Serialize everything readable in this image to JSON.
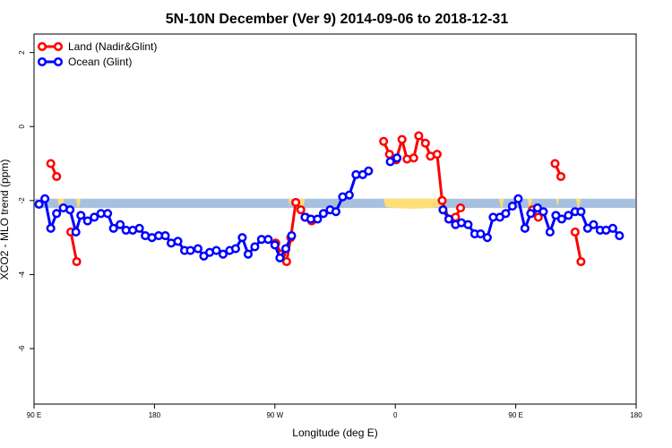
{
  "chart_data": {
    "type": "line",
    "title": "5N-10N December (Ver 9)   2014-09-06 to 2018-12-31",
    "xlabel": "Longitude (deg E)",
    "ylabel": "XCO2 - MLO trend (ppm)",
    "xlim": [
      90,
      450
    ],
    "ylim": [
      -7.5,
      2.5
    ],
    "x_ticks": [
      {
        "value": 90,
        "label": "90 E"
      },
      {
        "value": 162,
        "label": "180"
      },
      {
        "value": 234,
        "label": "90 W"
      },
      {
        "value": 306,
        "label": "0"
      },
      {
        "value": 378,
        "label": "90 E"
      },
      {
        "value": 450,
        "label": "180"
      }
    ],
    "y_ticks": [
      {
        "value": 2,
        "label": "2"
      },
      {
        "value": 0,
        "label": "0"
      },
      {
        "value": -2,
        "label": "-2"
      },
      {
        "value": -4,
        "label": "-4"
      },
      {
        "value": -6,
        "label": "-6"
      }
    ],
    "colors": {
      "land": "#ff0000",
      "ocean": "#0000ff",
      "band": "#a8c0e0",
      "landmask": "#ffdd77"
    },
    "band": {
      "y_top": -1.95,
      "y_bottom": -2.2
    },
    "legend": {
      "position": "top-left"
    },
    "series": [
      {
        "name": "Land (Nadir&Glint)",
        "color": "#ff0000",
        "segments": [
          [
            [
              100,
              -1.0
            ],
            [
              103.5,
              -1.35
            ]
          ],
          [
            [
              112,
              -2.85
            ],
            [
              115.5,
              -3.65
            ]
          ],
          [
            [
              234.5,
              -3.15
            ],
            [
              238,
              -3.45
            ],
            [
              241,
              -3.65
            ],
            [
              243.5,
              -3.0
            ],
            [
              246.5,
              -2.05
            ],
            [
              249.5,
              -2.25
            ],
            [
              252.5,
              -2.45
            ],
            [
              256,
              -2.55
            ]
          ],
          [
            [
              299,
              -0.4
            ],
            [
              302.5,
              -0.75
            ],
            [
              306.5,
              -0.9
            ],
            [
              310,
              -0.35
            ],
            [
              313,
              -0.88
            ],
            [
              317,
              -0.85
            ],
            [
              320,
              -0.25
            ],
            [
              324,
              -0.45
            ],
            [
              327,
              -0.8
            ],
            [
              331,
              -0.75
            ],
            [
              334,
              -2.0
            ],
            [
              338,
              -2.5
            ],
            [
              342,
              -2.45
            ],
            [
              345,
              -2.2
            ]
          ],
          [
            [
              388,
              -2.25
            ],
            [
              391.5,
              -2.45
            ]
          ],
          [
            [
              401.5,
              -1.0
            ],
            [
              405,
              -1.35
            ]
          ],
          [
            [
              413.5,
              -2.85
            ],
            [
              417,
              -3.65
            ]
          ]
        ]
      },
      {
        "name": "Ocean (Glint)",
        "color": "#0000ff",
        "segments": [
          [
            [
              93,
              -2.1
            ],
            [
              96.5,
              -1.95
            ],
            [
              100,
              -2.75
            ],
            [
              103.5,
              -2.35
            ],
            [
              107.5,
              -2.2
            ],
            [
              111.5,
              -2.25
            ],
            [
              115,
              -2.85
            ],
            [
              118,
              -2.4
            ],
            [
              122,
              -2.55
            ],
            [
              126,
              -2.45
            ],
            [
              130,
              -2.35
            ],
            [
              134,
              -2.35
            ],
            [
              137.5,
              -2.75
            ],
            [
              141.5,
              -2.65
            ],
            [
              145,
              -2.8
            ],
            [
              149,
              -2.8
            ],
            [
              153,
              -2.75
            ],
            [
              156.5,
              -2.95
            ],
            [
              160.5,
              -3.0
            ],
            [
              164.5,
              -2.95
            ],
            [
              168.5,
              -2.95
            ],
            [
              172,
              -3.15
            ],
            [
              176,
              -3.1
            ],
            [
              180,
              -3.35
            ],
            [
              183.5,
              -3.35
            ],
            [
              188,
              -3.3
            ],
            [
              191.5,
              -3.5
            ],
            [
              195,
              -3.4
            ],
            [
              199,
              -3.35
            ],
            [
              203,
              -3.45
            ],
            [
              207,
              -3.35
            ],
            [
              210.5,
              -3.3
            ],
            [
              214.5,
              -3.0
            ],
            [
              218,
              -3.45
            ],
            [
              222,
              -3.25
            ],
            [
              226,
              -3.05
            ],
            [
              230,
              -3.05
            ],
            [
              234,
              -3.2
            ],
            [
              237,
              -3.55
            ],
            [
              240.5,
              -3.3
            ],
            [
              244,
              -2.95
            ]
          ],
          [
            [
              252,
              -2.45
            ],
            [
              255.5,
              -2.5
            ],
            [
              259.5,
              -2.5
            ],
            [
              263,
              -2.35
            ],
            [
              267,
              -2.25
            ],
            [
              270.5,
              -2.3
            ],
            [
              274.5,
              -1.9
            ],
            [
              278.5,
              -1.85
            ],
            [
              282.5,
              -1.3
            ],
            [
              286.5,
              -1.3
            ],
            [
              290,
              -1.2
            ]
          ],
          [
            [
              303,
              -0.95
            ],
            [
              307,
              -0.85
            ]
          ],
          [
            [
              334.5,
              -2.25
            ],
            [
              338,
              -2.5
            ],
            [
              342,
              -2.65
            ],
            [
              345.5,
              -2.6
            ],
            [
              349.5,
              -2.65
            ],
            [
              353.5,
              -2.9
            ],
            [
              357,
              -2.9
            ],
            [
              361,
              -3.0
            ],
            [
              364.5,
              -2.45
            ],
            [
              368.5,
              -2.45
            ],
            [
              372,
              -2.35
            ],
            [
              376,
              -2.15
            ],
            [
              379.5,
              -1.95
            ],
            [
              383.5,
              -2.75
            ],
            [
              387,
              -2.35
            ],
            [
              391,
              -2.2
            ],
            [
              394.5,
              -2.3
            ],
            [
              398.5,
              -2.85
            ],
            [
              402,
              -2.4
            ],
            [
              405.5,
              -2.5
            ],
            [
              409.5,
              -2.4
            ],
            [
              413.5,
              -2.3
            ],
            [
              417,
              -2.3
            ],
            [
              421,
              -2.75
            ],
            [
              424.5,
              -2.65
            ],
            [
              428.5,
              -2.8
            ],
            [
              432,
              -2.8
            ],
            [
              436,
              -2.75
            ],
            [
              440,
              -2.95
            ]
          ]
        ]
      }
    ]
  }
}
